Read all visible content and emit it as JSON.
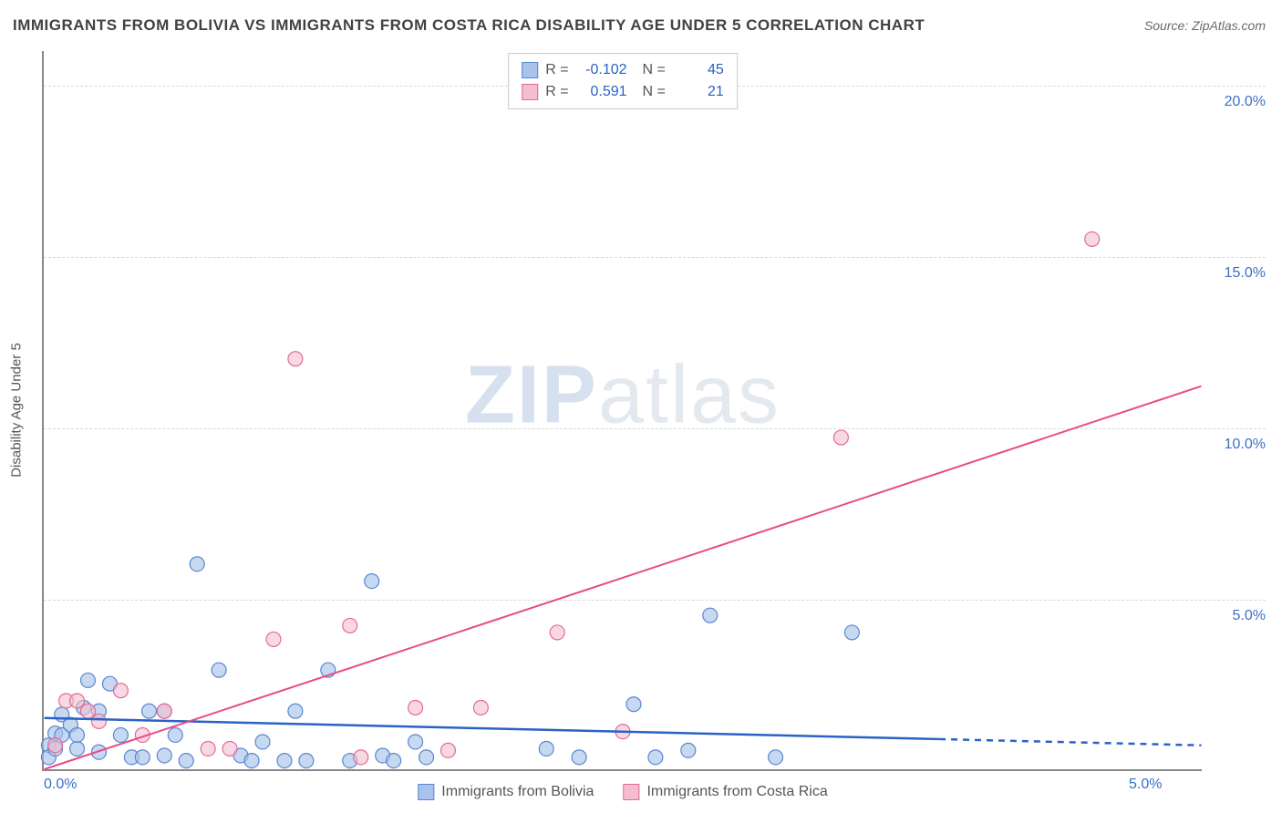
{
  "title": "IMMIGRANTS FROM BOLIVIA VS IMMIGRANTS FROM COSTA RICA DISABILITY AGE UNDER 5 CORRELATION CHART",
  "source": "Source: ZipAtlas.com",
  "y_axis_label": "Disability Age Under 5",
  "watermark": {
    "zip": "ZIP",
    "atlas": "atlas"
  },
  "chart": {
    "type": "scatter-correlation",
    "background_color": "#ffffff",
    "grid_color": "#d9d9d9",
    "axis_color": "#888888",
    "tick_color": "#3b6fc9",
    "x_range": [
      0,
      5.3
    ],
    "y_range": [
      0,
      21
    ],
    "y_ticks": [
      {
        "v": 5,
        "label": "5.0%"
      },
      {
        "v": 10,
        "label": "10.0%"
      },
      {
        "v": 15,
        "label": "15.0%"
      },
      {
        "v": 20,
        "label": "20.0%"
      }
    ],
    "x_ticks": [
      {
        "v": 0,
        "label": "0.0%"
      },
      {
        "v": 5,
        "label": "5.0%"
      }
    ],
    "series": [
      {
        "name": "Immigrants from Bolivia",
        "key": "bolivia",
        "marker_fill": "#a9c3ea",
        "marker_stroke": "#5a86d0",
        "marker_opacity": 0.65,
        "marker_r": 8,
        "line_color": "#2a62c7",
        "line_width": 2.5,
        "R": "-0.102",
        "N": "45",
        "trend": {
          "x1": 0,
          "y1": 1.5,
          "x2": 5.3,
          "y2": 0.7,
          "dash_after_x": 4.1
        },
        "points": [
          [
            0.02,
            0.7
          ],
          [
            0.02,
            0.35
          ],
          [
            0.05,
            0.6
          ],
          [
            0.05,
            1.05
          ],
          [
            0.08,
            1.0
          ],
          [
            0.08,
            1.6
          ],
          [
            0.12,
            1.3
          ],
          [
            0.15,
            0.6
          ],
          [
            0.15,
            1.0
          ],
          [
            0.18,
            1.8
          ],
          [
            0.2,
            2.6
          ],
          [
            0.25,
            0.5
          ],
          [
            0.25,
            1.7
          ],
          [
            0.3,
            2.5
          ],
          [
            0.35,
            1.0
          ],
          [
            0.4,
            0.35
          ],
          [
            0.45,
            0.35
          ],
          [
            0.48,
            1.7
          ],
          [
            0.55,
            0.4
          ],
          [
            0.55,
            1.7
          ],
          [
            0.6,
            1.0
          ],
          [
            0.65,
            0.25
          ],
          [
            0.7,
            6.0
          ],
          [
            0.8,
            2.9
          ],
          [
            0.9,
            0.4
          ],
          [
            0.95,
            0.25
          ],
          [
            1.0,
            0.8
          ],
          [
            1.1,
            0.25
          ],
          [
            1.15,
            1.7
          ],
          [
            1.2,
            0.25
          ],
          [
            1.3,
            2.9
          ],
          [
            1.4,
            0.25
          ],
          [
            1.5,
            5.5
          ],
          [
            1.55,
            0.4
          ],
          [
            1.6,
            0.25
          ],
          [
            1.7,
            0.8
          ],
          [
            1.75,
            0.35
          ],
          [
            2.3,
            0.6
          ],
          [
            2.45,
            0.35
          ],
          [
            2.7,
            1.9
          ],
          [
            2.8,
            0.35
          ],
          [
            2.95,
            0.55
          ],
          [
            3.05,
            4.5
          ],
          [
            3.35,
            0.35
          ],
          [
            3.7,
            4.0
          ]
        ]
      },
      {
        "name": "Immigrants from Costa Rica",
        "key": "costarica",
        "marker_fill": "#f3bed0",
        "marker_stroke": "#e46a94",
        "marker_opacity": 0.6,
        "marker_r": 8,
        "line_color": "#e94b84",
        "line_width": 2,
        "R": "0.591",
        "N": "21",
        "trend": {
          "x1": 0,
          "y1": 0,
          "x2": 5.3,
          "y2": 11.2,
          "dash_after_x": null
        },
        "points": [
          [
            0.05,
            0.7
          ],
          [
            0.1,
            2.0
          ],
          [
            0.15,
            2.0
          ],
          [
            0.2,
            1.7
          ],
          [
            0.25,
            1.4
          ],
          [
            0.35,
            2.3
          ],
          [
            0.45,
            1.0
          ],
          [
            0.55,
            1.7
          ],
          [
            0.75,
            0.6
          ],
          [
            0.85,
            0.6
          ],
          [
            1.05,
            3.8
          ],
          [
            1.15,
            12.0
          ],
          [
            1.4,
            4.2
          ],
          [
            1.45,
            0.35
          ],
          [
            1.7,
            1.8
          ],
          [
            1.85,
            0.55
          ],
          [
            2.0,
            1.8
          ],
          [
            2.35,
            4.0
          ],
          [
            2.65,
            1.1
          ],
          [
            3.65,
            9.7
          ],
          [
            4.8,
            15.5
          ]
        ]
      }
    ],
    "bottom_legend": [
      {
        "series": "bolivia"
      },
      {
        "series": "costarica"
      }
    ]
  }
}
